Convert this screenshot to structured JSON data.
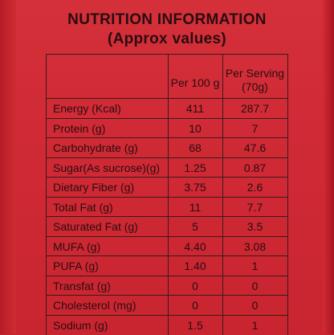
{
  "title": "NUTRITION INFORMATION",
  "subtitle": "(Approx values)",
  "columns": {
    "per_100g": "Per 100 g",
    "per_serving_line1": "Per Serving",
    "per_serving_line2": "(70g)"
  },
  "rows": [
    {
      "nutrient": "Energy (Kcal)",
      "per_100g": "411",
      "per_serving": "287.7"
    },
    {
      "nutrient": "Protein (g)",
      "per_100g": "10",
      "per_serving": "7"
    },
    {
      "nutrient": "Carbohydrate (g)",
      "per_100g": "68",
      "per_serving": "47.6"
    },
    {
      "nutrient": "Sugar(As sucrose)(g)",
      "per_100g": "1.25",
      "per_serving": "0.87"
    },
    {
      "nutrient": "Dietary Fiber (g)",
      "per_100g": "3.75",
      "per_serving": "2.6"
    },
    {
      "nutrient": "Total Fat (g)",
      "per_100g": "11",
      "per_serving": "7.7"
    },
    {
      "nutrient": "Saturated Fat (g)",
      "per_100g": "5",
      "per_serving": "3.5"
    },
    {
      "nutrient": "MUFA (g)",
      "per_100g": "4.40",
      "per_serving": "3.08"
    },
    {
      "nutrient": "PUFA (g)",
      "per_100g": "1.40",
      "per_serving": "1"
    },
    {
      "nutrient": "Transfat (g)",
      "per_100g": "0",
      "per_serving": "0"
    },
    {
      "nutrient": "Cholesterol (mg)",
      "per_100g": "0",
      "per_serving": "0"
    },
    {
      "nutrient": "Sodium (g)",
      "per_100g": "1.5",
      "per_serving": "1"
    }
  ]
}
